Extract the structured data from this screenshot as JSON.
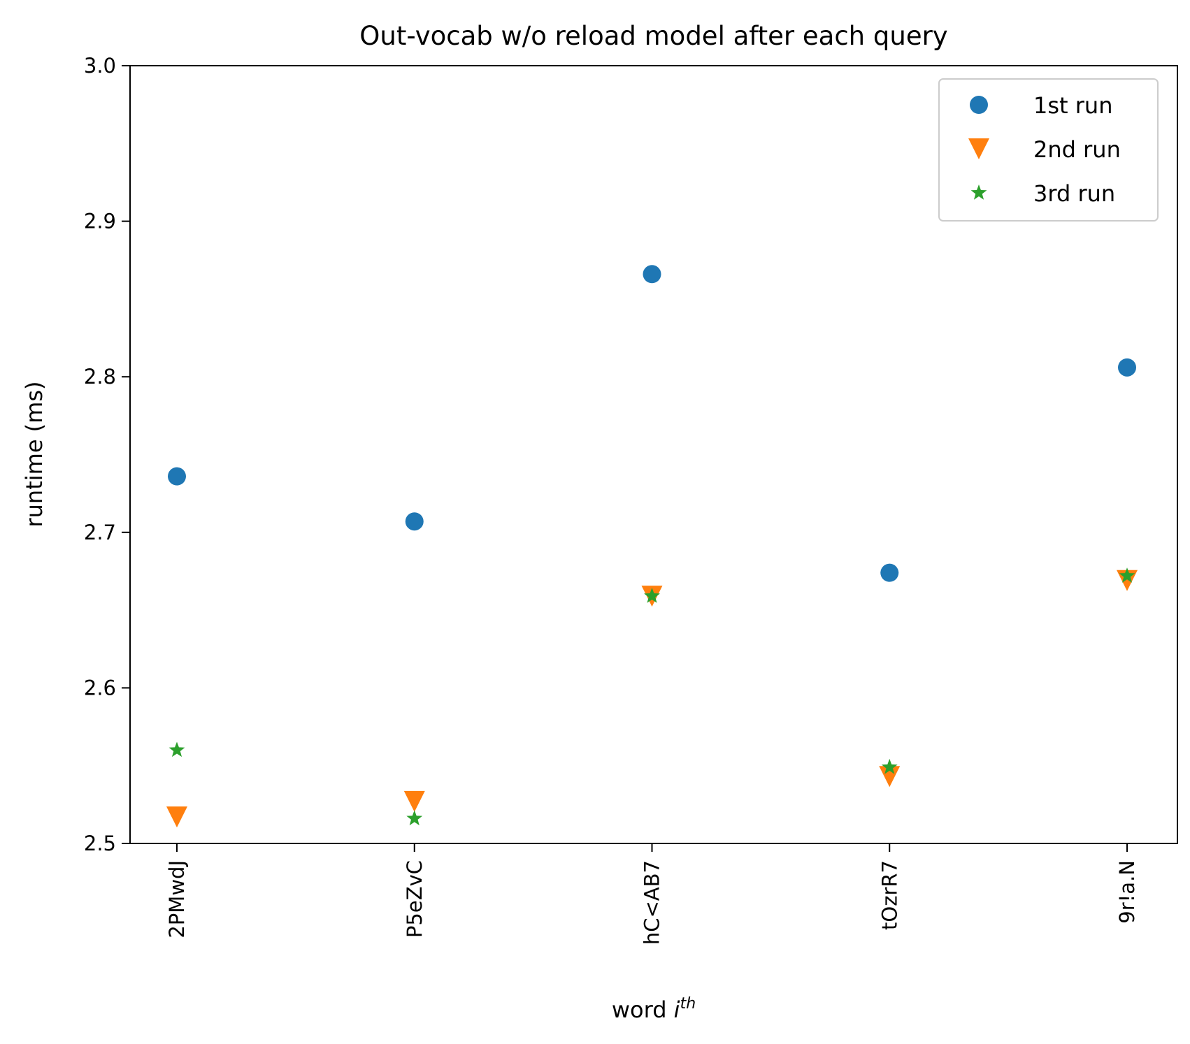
{
  "chart_data": {
    "type": "scatter",
    "title": "Out-vocab w/o reload model after each query",
    "xlabel": "word",
    "xlabel_math": "i",
    "xlabel_sup": "th",
    "ylabel": "runtime (ms)",
    "categories": [
      "2PMwdJ",
      "P5eZvC",
      "hC<AB7",
      "tOzrR7",
      "9r!a.N"
    ],
    "ylim": [
      2.5,
      3.0
    ],
    "yticks": [
      "2.5",
      "2.6",
      "2.7",
      "2.8",
      "2.9",
      "3.0"
    ],
    "grid": false,
    "legend_position": "top-right",
    "series": [
      {
        "name": "1st run",
        "marker": "circle",
        "color": "#1f77b4",
        "values": [
          2.736,
          2.707,
          2.866,
          2.674,
          2.806
        ]
      },
      {
        "name": "2nd run",
        "marker": "triangle-down",
        "color": "#ff7f0e",
        "values": [
          2.517,
          2.527,
          2.659,
          2.543,
          2.669
        ]
      },
      {
        "name": "3rd run",
        "marker": "star",
        "color": "#2ca02c",
        "values": [
          2.56,
          2.516,
          2.659,
          2.549,
          2.672
        ]
      }
    ]
  }
}
